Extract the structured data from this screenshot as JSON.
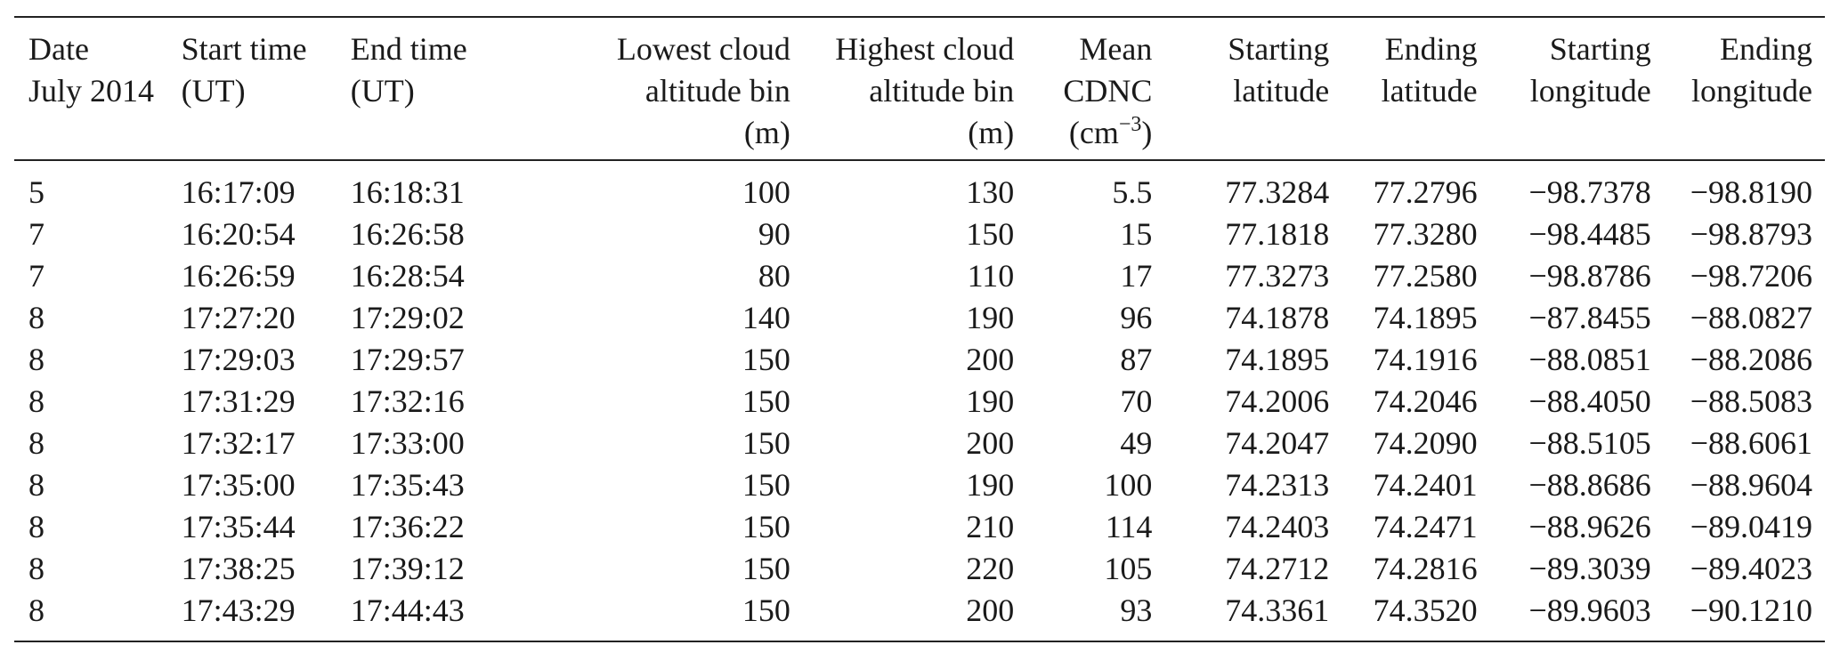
{
  "table": {
    "headers": [
      {
        "key": "date",
        "lines": [
          "Date",
          "July 2014"
        ]
      },
      {
        "key": "start_time",
        "lines": [
          "Start time",
          "(UT)"
        ]
      },
      {
        "key": "end_time",
        "lines": [
          "End time",
          "(UT)"
        ]
      },
      {
        "key": "lowest_bin",
        "lines": [
          "Lowest cloud",
          "altitude bin",
          "(m)"
        ]
      },
      {
        "key": "highest_bin",
        "lines": [
          "Highest cloud",
          "altitude bin",
          "(m)"
        ]
      },
      {
        "key": "mean_cdnc",
        "lines": [
          "Mean",
          "CDNC"
        ],
        "unit_base": "(cm",
        "unit_exp": "−3",
        "unit_close": ")"
      },
      {
        "key": "start_lat",
        "lines": [
          "Starting",
          "latitude"
        ]
      },
      {
        "key": "end_lat",
        "lines": [
          "Ending",
          "latitude"
        ]
      },
      {
        "key": "start_lon",
        "lines": [
          "Starting",
          "longitude"
        ]
      },
      {
        "key": "end_lon",
        "lines": [
          "Ending",
          "longitude"
        ]
      }
    ],
    "rows": [
      [
        "5",
        "16:17:09",
        "16:18:31",
        "100",
        "130",
        "5.5",
        "77.3284",
        "77.2796",
        "−98.7378",
        "−98.8190"
      ],
      [
        "7",
        "16:20:54",
        "16:26:58",
        "90",
        "150",
        "15",
        "77.1818",
        "77.3280",
        "−98.4485",
        "−98.8793"
      ],
      [
        "7",
        "16:26:59",
        "16:28:54",
        "80",
        "110",
        "17",
        "77.3273",
        "77.2580",
        "−98.8786",
        "−98.7206"
      ],
      [
        "8",
        "17:27:20",
        "17:29:02",
        "140",
        "190",
        "96",
        "74.1878",
        "74.1895",
        "−87.8455",
        "−88.0827"
      ],
      [
        "8",
        "17:29:03",
        "17:29:57",
        "150",
        "200",
        "87",
        "74.1895",
        "74.1916",
        "−88.0851",
        "−88.2086"
      ],
      [
        "8",
        "17:31:29",
        "17:32:16",
        "150",
        "190",
        "70",
        "74.2006",
        "74.2046",
        "−88.4050",
        "−88.5083"
      ],
      [
        "8",
        "17:32:17",
        "17:33:00",
        "150",
        "200",
        "49",
        "74.2047",
        "74.2090",
        "−88.5105",
        "−88.6061"
      ],
      [
        "8",
        "17:35:00",
        "17:35:43",
        "150",
        "190",
        "100",
        "74.2313",
        "74.2401",
        "−88.8686",
        "−88.9604"
      ],
      [
        "8",
        "17:35:44",
        "17:36:22",
        "150",
        "210",
        "114",
        "74.2403",
        "74.2471",
        "−88.9626",
        "−89.0419"
      ],
      [
        "8",
        "17:38:25",
        "17:39:12",
        "150",
        "220",
        "105",
        "74.2712",
        "74.2816",
        "−89.3039",
        "−89.4023"
      ],
      [
        "8",
        "17:43:29",
        "17:44:43",
        "150",
        "200",
        "93",
        "74.3361",
        "74.3520",
        "−89.9603",
        "−90.1210"
      ]
    ]
  }
}
